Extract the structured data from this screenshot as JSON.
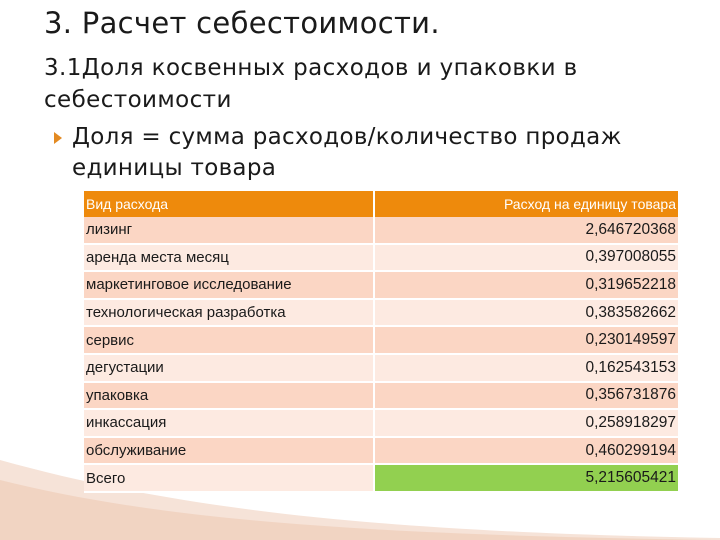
{
  "slide": {
    "title": "3. Расчет себестоимости.",
    "subtitle": "3.1Доля косвенных расходов и упаковки в себестоимости",
    "bullet": "Доля = сумма расходов/количество продаж единицы товара"
  },
  "table": {
    "headers": [
      "Вид расхода",
      "Расход на единицу товара"
    ],
    "rows": [
      {
        "name": "лизинг",
        "value": "2,646720368"
      },
      {
        "name": "аренда места месяц",
        "value": "0,397008055"
      },
      {
        "name": "маркетинговое исследование",
        "value": "0,319652218"
      },
      {
        "name": "технологическая разработка",
        "value": "0,383582662"
      },
      {
        "name": "сервис",
        "value": "0,230149597"
      },
      {
        "name": "дегустации",
        "value": "0,162543153"
      },
      {
        "name": "упаковка",
        "value": "0,356731876"
      },
      {
        "name": "инкассация",
        "value": "0,258918297"
      },
      {
        "name": "обслуживание",
        "value": "0,460299194"
      },
      {
        "name": "Всего",
        "value": "5,215605421"
      }
    ]
  },
  "colors": {
    "header_bg": "#ee8a0c",
    "row_odd": "#fbd6c4",
    "row_even": "#fdeae1",
    "total_highlight": "#92d050",
    "bullet": "#e38a22"
  }
}
